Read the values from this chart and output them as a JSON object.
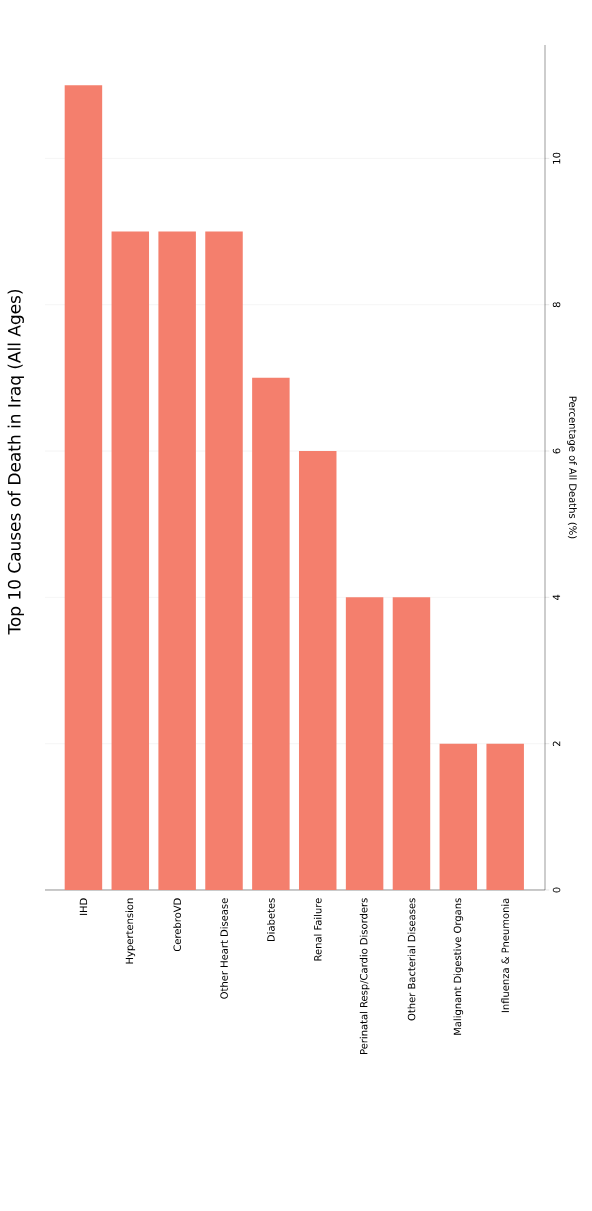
{
  "chart_data": {
    "type": "bar",
    "title": "Top 10 Causes of Death in Iraq (All Ages)",
    "ylabel": "Percentage of All Deaths (%)",
    "categories": [
      "IHD",
      "Hypertension",
      "CerebroVD",
      "Other Heart Disease",
      "Diabetes",
      "Renal Failure",
      "Perinatal Resp/Cardio Disorders",
      "Other Bacterial Diseases",
      "Malignant Digestive Organs",
      "Influenza & Pneumonia"
    ],
    "values": [
      11,
      9,
      9,
      9,
      7,
      6,
      4,
      4,
      2,
      2
    ],
    "color": "#f47f6d",
    "ylim": [
      0,
      11.55
    ],
    "yticks": [
      0,
      2,
      4,
      6,
      8,
      10
    ],
    "grid": "y"
  }
}
